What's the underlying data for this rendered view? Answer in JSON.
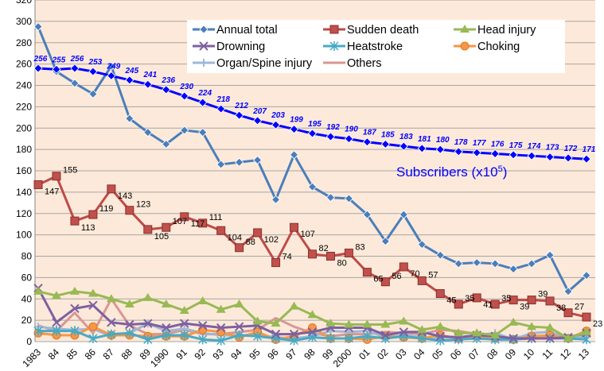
{
  "chart_data": {
    "type": "line",
    "ylim": [
      0,
      320
    ],
    "yticks": [
      0,
      20,
      40,
      60,
      80,
      100,
      120,
      140,
      160,
      180,
      200,
      220,
      240,
      260,
      280,
      300,
      320
    ],
    "grid": true,
    "legend_placement": "top-right",
    "background": "#fde9d9",
    "categories": [
      "1983",
      "84",
      "85",
      "86",
      "87",
      "88",
      "89",
      "1990",
      "91",
      "92",
      "93",
      "94",
      "95",
      "96",
      "97",
      "98",
      "99",
      "2000",
      "01",
      "02",
      "03",
      "04",
      "05",
      "06",
      "07",
      "08",
      "09",
      "10",
      "11",
      "12",
      "13"
    ],
    "series": [
      {
        "name": "Annual total",
        "color": "#4a7ebb",
        "marker": "diamond",
        "values": [
          295,
          253,
          242,
          232,
          258,
          209,
          196,
          185,
          198,
          196,
          166,
          168,
          170,
          133,
          175,
          145,
          135,
          134,
          119,
          94,
          119,
          91,
          81,
          73,
          74,
          73,
          68,
          73,
          81,
          47,
          62
        ]
      },
      {
        "name": "Sudden death",
        "color": "#be4b48",
        "marker": "square",
        "labels": true,
        "values": [
          147,
          155,
          113,
          119,
          143,
          123,
          105,
          107,
          117,
          111,
          104,
          88,
          102,
          74,
          107,
          82,
          80,
          83,
          65,
          56,
          70,
          57,
          45,
          35,
          41,
          35,
          39,
          39,
          38,
          27,
          23
        ]
      },
      {
        "name": "Head injury",
        "color": "#98b954",
        "marker": "triangle",
        "values": [
          47,
          43,
          47,
          45,
          40,
          35,
          41,
          35,
          29,
          38,
          30,
          35,
          19,
          17,
          33,
          25,
          17,
          16,
          16,
          16,
          19,
          11,
          14,
          8,
          8,
          6,
          18,
          14,
          13,
          3,
          9
        ]
      },
      {
        "name": "Drowning",
        "color": "#7d60a0",
        "marker": "x",
        "values": [
          50,
          18,
          31,
          34,
          18,
          16,
          17,
          13,
          17,
          15,
          13,
          14,
          15,
          7,
          7,
          9,
          13,
          13,
          13,
          6,
          9,
          9,
          5,
          4,
          6,
          5,
          3,
          3,
          3,
          4,
          8
        ]
      },
      {
        "name": "Heatstroke",
        "color": "#46aac5",
        "marker": "star",
        "values": [
          10,
          10,
          10,
          3,
          7,
          8,
          2,
          6,
          6,
          2,
          1,
          6,
          5,
          3,
          1,
          4,
          3,
          3,
          5,
          3,
          5,
          3,
          1,
          2,
          3,
          2,
          2,
          3,
          3,
          3,
          2
        ]
      },
      {
        "name": "Choking",
        "color": "#f79646",
        "marker": "circle",
        "values": [
          8,
          6,
          6,
          14,
          6,
          6,
          5,
          5,
          5,
          11,
          9,
          4,
          9,
          2,
          5,
          13,
          3,
          3,
          2,
          5,
          4,
          3,
          6,
          3,
          5,
          3,
          2,
          5,
          6,
          3,
          10
        ]
      },
      {
        "name": "Organ/Spine injury",
        "color": "#9cb8d8",
        "marker": "plus",
        "values": [
          14,
          12,
          11,
          12,
          5,
          8,
          17,
          10,
          12,
          8,
          6,
          6,
          6,
          4,
          3,
          5,
          10,
          9,
          10,
          4,
          6,
          4,
          4,
          4,
          6,
          8,
          2,
          8,
          9,
          3,
          5
        ]
      },
      {
        "name": "Others",
        "color": "#d99694",
        "marker": "none",
        "values": [
          15,
          10,
          27,
          8,
          40,
          15,
          7,
          7,
          11,
          7,
          7,
          9,
          11,
          22,
          14,
          8,
          5,
          7,
          7,
          9,
          8,
          7,
          11,
          10,
          7,
          3,
          4,
          5,
          4,
          4,
          6
        ]
      }
    ],
    "subscribers": {
      "label": "Subscribers (x10",
      "label_exp": "5",
      "label_close": ")",
      "color": "#0000ff",
      "values": [
        256,
        255,
        256,
        253,
        249,
        245,
        241,
        236,
        230,
        224,
        218,
        212,
        207,
        203,
        199,
        195,
        192,
        190,
        187,
        185,
        183,
        181,
        180,
        178,
        177,
        176,
        175,
        174,
        173,
        172,
        171
      ]
    }
  }
}
